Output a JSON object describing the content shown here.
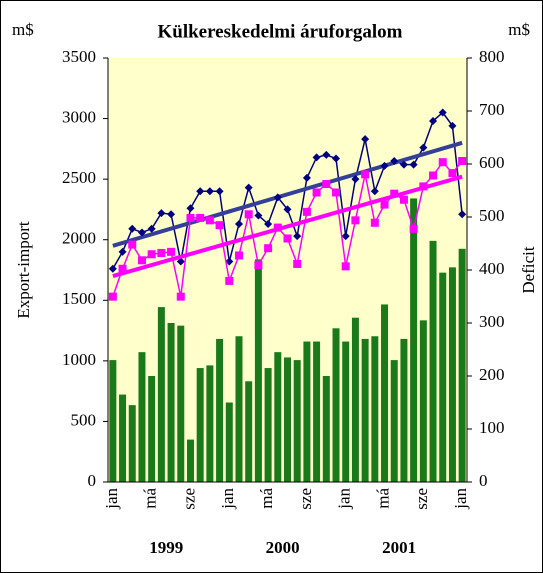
{
  "chart_data": {
    "type": "combo",
    "title": "Külkereskedelmi áruforgalom",
    "y_unit": "m$",
    "y2_unit": "m$",
    "y_label": "Export-import",
    "y2_label": "Deficit",
    "categories": [
      "jan",
      null,
      null,
      null,
      "má",
      null,
      null,
      null,
      "sze",
      null,
      null,
      null,
      "jan",
      null,
      null,
      null,
      "má",
      null,
      null,
      null,
      "sze",
      null,
      null,
      null,
      "jan",
      null,
      null,
      null,
      "má",
      null,
      null,
      null,
      "sze",
      null,
      null,
      null,
      "jan"
    ],
    "year_labels": [
      "1999",
      "2000",
      "2001"
    ],
    "series": [
      {
        "type": "bar",
        "axis": "y2",
        "color": "#1a7a1a",
        "values": [
          230,
          165,
          145,
          245,
          200,
          330,
          300,
          295,
          80,
          215,
          220,
          270,
          150,
          275,
          190,
          420,
          215,
          245,
          235,
          230,
          265,
          265,
          200,
          290,
          265,
          310,
          270,
          275,
          335,
          230,
          270,
          535,
          305,
          455,
          395,
          405,
          440
        ]
      },
      {
        "type": "line",
        "marker": "diamond",
        "color": "#000080",
        "trend": [
          1950,
          2800
        ],
        "trend_color": "#333f99",
        "values": [
          1760,
          1900,
          2090,
          2060,
          2090,
          2220,
          2210,
          1820,
          2260,
          2400,
          2400,
          2400,
          1820,
          2130,
          2430,
          2200,
          2130,
          2350,
          2250,
          2030,
          2510,
          2680,
          2700,
          2670,
          2030,
          2500,
          2830,
          2400,
          2610,
          2650,
          2620,
          2620,
          2760,
          2980,
          3050,
          2940,
          2210
        ]
      },
      {
        "type": "line",
        "marker": "square",
        "color": "#ff00ff",
        "trend": [
          1700,
          2520
        ],
        "trend_color": "#ff00ff",
        "values": [
          1530,
          1760,
          1960,
          1830,
          1880,
          1890,
          1900,
          1530,
          2180,
          2180,
          2160,
          2120,
          1660,
          1870,
          2210,
          1790,
          1930,
          2100,
          2010,
          1800,
          2230,
          2390,
          2460,
          2390,
          1780,
          2160,
          2540,
          2140,
          2290,
          2380,
          2330,
          2090,
          2440,
          2530,
          2640,
          2550,
          2650
        ]
      }
    ],
    "ylim": [
      0,
      3500
    ],
    "yticks": [
      0,
      500,
      1000,
      1500,
      2000,
      2500,
      3000,
      3500
    ],
    "y2lim": [
      0,
      800
    ],
    "y2ticks": [
      0,
      100,
      200,
      300,
      400,
      500,
      600,
      700,
      800
    ]
  }
}
